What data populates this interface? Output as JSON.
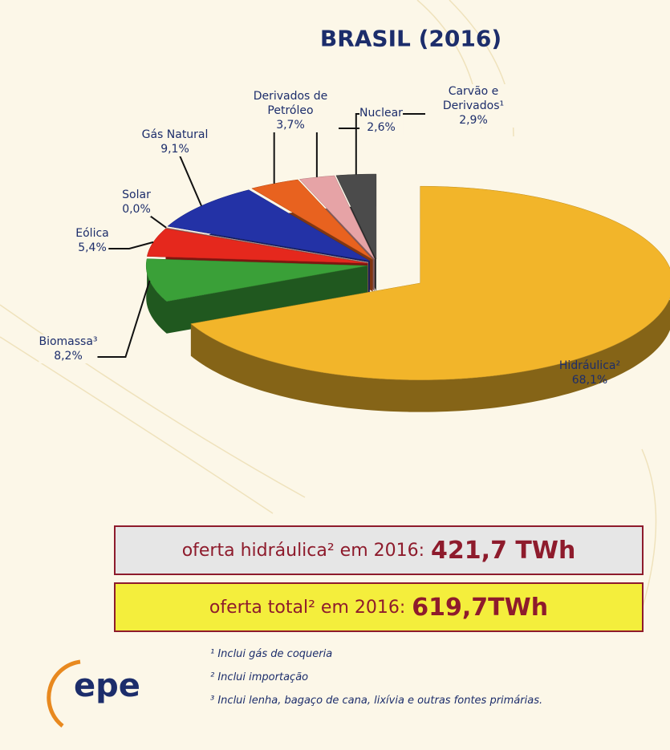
{
  "chart_data": {
    "type": "pie",
    "title": "BRASIL (2016)",
    "categories": [
      "Hidráulica²",
      "Biomassa³",
      "Eólica",
      "Solar",
      "Gás Natural",
      "Derivados de Petróleo",
      "Nuclear",
      "Carvão e Derivados¹"
    ],
    "values": [
      68.1,
      8.2,
      5.4,
      0.0,
      9.1,
      3.7,
      2.6,
      2.9
    ],
    "value_labels": [
      "68,1%",
      "8,2%",
      "5,4%",
      "0,0%",
      "9,1%",
      "3,7%",
      "2,6%",
      "2,9%"
    ],
    "colors": [
      "#f2b52a",
      "#3aa038",
      "#e5281d",
      "#f2c9c2",
      "#2332a6",
      "#e8621f",
      "#e6a3a6",
      "#4b4b4b"
    ]
  },
  "boxes": [
    {
      "text": "oferta hidráulica² em 2016:",
      "value": "421,7 TWh"
    },
    {
      "text": "oferta total² em 2016:",
      "value": "619,7TWh"
    }
  ],
  "footnotes": [
    "¹ Inclui gás de coqueria",
    "² Inclui importação",
    "³ Inclui lenha, bagaço de cana, lixívia e outras fontes primárias."
  ],
  "logo": "epe"
}
